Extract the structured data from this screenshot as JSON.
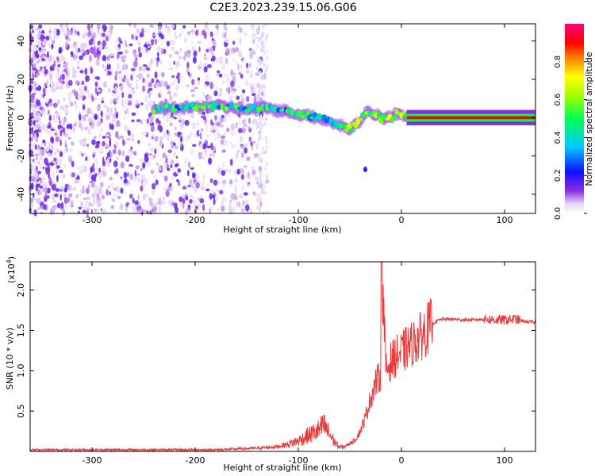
{
  "title": "C2E3.2023.239.15.06.G06",
  "chart_data": [
    {
      "type": "heatmap",
      "xlabel": "Height of straight line (km)",
      "ylabel": "Frequency (Hz)",
      "xlim": [
        -360,
        130
      ],
      "ylim": [
        -50,
        49
      ],
      "x_ticks": [
        -300,
        -200,
        -100,
        0,
        100
      ],
      "y_ticks": [
        -40,
        -20,
        0,
        20,
        40
      ],
      "ridge": {
        "x": [
          -240,
          -230,
          -210,
          -190,
          -175,
          -160,
          -150,
          -140,
          -130,
          -120,
          -110,
          -100,
          -90,
          -80,
          -75,
          -70,
          -65,
          -60,
          -55,
          -50,
          -45,
          -40,
          -37,
          -34,
          -30,
          -25,
          -20,
          -15,
          -10,
          -5,
          0,
          5,
          10,
          40,
          80,
          110,
          130
        ],
        "y": [
          4,
          5,
          5,
          6,
          6,
          5,
          4,
          5,
          5,
          4,
          3,
          2,
          1,
          0,
          -1,
          -2,
          -3,
          -4,
          -5,
          -6,
          -4,
          -2,
          1,
          3,
          3,
          2,
          0,
          0,
          0,
          2,
          2,
          1,
          0,
          0,
          0,
          0,
          0
        ]
      },
      "outlier": {
        "x": -35,
        "y": -27
      },
      "colorbar": {
        "label": "Normalized spectral amplitude",
        "range": [
          0,
          1
        ],
        "ticks": [
          "0.0",
          "0.2",
          "0.4",
          "0.6",
          "0.8"
        ]
      }
    },
    {
      "type": "line",
      "xlabel": "Height of straight line (km)",
      "ylabel": "SNR (10 * v/v)",
      "multiplier": "(x10",
      "multiplier_exp": "4",
      "multiplier_close": ")",
      "xlim": [
        -360,
        130
      ],
      "ylim": [
        0,
        2.35
      ],
      "x_ticks": [
        -300,
        -200,
        -100,
        0,
        100
      ],
      "y_ticks": [
        0.5,
        1.0,
        1.5,
        2.0
      ],
      "y_tick_labels": [
        "0.5",
        "1.0",
        "1.5",
        "2.0"
      ],
      "series": [
        {
          "color": "#e83a3a",
          "x": [
            -360,
            -300,
            -250,
            -200,
            -180,
            -160,
            -140,
            -120,
            -110,
            -100,
            -90,
            -80,
            -75,
            -70,
            -65,
            -60,
            -55,
            -50,
            -45,
            -40,
            -35,
            -30,
            -25,
            -20,
            -19,
            -15,
            -10,
            -5,
            0,
            5,
            10,
            15,
            20,
            25,
            30,
            35,
            40,
            50,
            60,
            70,
            80,
            90,
            100,
            110,
            120,
            130
          ],
          "y": [
            0.02,
            0.02,
            0.02,
            0.02,
            0.02,
            0.03,
            0.04,
            0.06,
            0.09,
            0.13,
            0.2,
            0.26,
            0.32,
            0.22,
            0.12,
            0.05,
            0.06,
            0.1,
            0.14,
            0.25,
            0.42,
            0.65,
            0.85,
            0.95,
            2.35,
            1.0,
            1.12,
            1.18,
            1.22,
            1.28,
            1.33,
            1.38,
            1.44,
            1.52,
            1.58,
            1.62,
            1.64,
            1.64,
            1.63,
            1.63,
            1.64,
            1.63,
            1.63,
            1.64,
            1.61,
            1.6
          ]
        }
      ]
    }
  ]
}
